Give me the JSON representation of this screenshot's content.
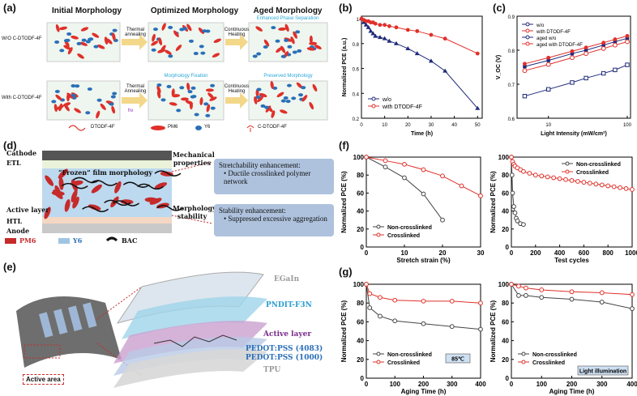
{
  "panels": {
    "a": {
      "label": "(a)",
      "headers": [
        "Initial Morphology",
        "Optimized Morphology",
        "Aged Morphology"
      ],
      "row1_label": "W/O C-DTODF-4F",
      "row2_label": "With C-DTODF-4F",
      "arrow1_row1": "Thermal annealing",
      "arrow2_row1": "Continuous Heating",
      "arrow1_row2": "Thermal Annealing",
      "arrow1_row2_sub": "hv",
      "arrow2_row2": "Continuous Heating",
      "note_enhanced": "Enhanced Phase Separation",
      "note_fixation": "Morphology Fixation",
      "note_preserved": "Preserved Morphology",
      "legend_dtodf": "DTODF-4F",
      "legend_pm6": "PM6",
      "legend_y6": "Y6",
      "legend_cdtodf": "C-DTODF-4F"
    },
    "b": {
      "label": "(b)"
    },
    "c": {
      "label": "(c)"
    },
    "d": {
      "label": "(d)",
      "cathode": "Cathode",
      "etl": "ETL",
      "frozen": "“Frozen” film morphology",
      "active": "Active layer",
      "htl": "HTL",
      "anode": "Anode",
      "mech": "Mechanical properties",
      "morph": "Morphology stability",
      "box1_title": "Stretchability enhancement:",
      "box1_item": "Ductile crosslinked polymer network",
      "box2_title": "Stability enhancement:",
      "box2_item": "Suppressed excessive aggregation",
      "legend_pm6": "PM6",
      "legend_y6": "Y6",
      "legend_bac": "BAC"
    },
    "e": {
      "label": "(e)",
      "egain": "EGaIn",
      "pndit": "PNDIT-F3N",
      "active_layer": "Active layer",
      "pedot1": "PEDOT:PSS (4083)",
      "pedot2": "PEDOT:PSS (1000)",
      "tpu": "TPU",
      "active_area": "Active area"
    },
    "f": {
      "label": "(f)"
    },
    "g": {
      "label": "(g)"
    }
  },
  "colors": {
    "red": "#e0302a",
    "navy": "#1f2a7a",
    "gray": "#444444",
    "blue_box": "#aec2dd"
  },
  "chart_data": [
    {
      "id": "b",
      "type": "line",
      "xlabel": "Time (h)",
      "ylabel": "Normalized PCE (a.u.)",
      "xlim": [
        0,
        52
      ],
      "ylim": [
        0.2,
        1.02
      ],
      "xticks": [
        0,
        10,
        20,
        30,
        40,
        50
      ],
      "yticks": [
        0.2,
        0.4,
        0.6,
        0.8,
        1.0
      ],
      "legend_position": "bottom-left",
      "series": [
        {
          "name": "w/o",
          "color": "#1f2a7a",
          "marker": "triangle",
          "x": [
            0,
            1,
            2,
            3,
            4,
            5,
            6,
            8,
            10,
            12,
            15,
            20,
            24,
            30,
            36,
            50
          ],
          "y": [
            1.0,
            0.97,
            0.95,
            0.93,
            0.9,
            0.88,
            0.86,
            0.85,
            0.84,
            0.82,
            0.8,
            0.76,
            0.72,
            0.66,
            0.58,
            0.28
          ]
        },
        {
          "name": "with DTODF-4F",
          "color": "#e0302a",
          "marker": "circle",
          "x": [
            0,
            1,
            2,
            3,
            4,
            5,
            6,
            8,
            10,
            12,
            15,
            20,
            24,
            30,
            36,
            50
          ],
          "y": [
            1.0,
            0.99,
            0.98,
            0.98,
            0.97,
            0.97,
            0.96,
            0.95,
            0.95,
            0.94,
            0.93,
            0.91,
            0.9,
            0.87,
            0.84,
            0.72
          ]
        }
      ]
    },
    {
      "id": "c",
      "type": "scatter",
      "xlabel": "Light Intensity (mW/cm²)",
      "ylabel": "V_OC (V)",
      "xscale": "log",
      "xlim": [
        4,
        110
      ],
      "ylim": [
        0.6,
        0.9
      ],
      "xticks": [
        10,
        100
      ],
      "yticks": [
        0.6,
        0.7,
        0.8,
        0.9
      ],
      "legend_position": "top-left",
      "series": [
        {
          "name": "w/o",
          "color": "#1f2a7a",
          "marker": "square-filled",
          "x": [
            5,
            10,
            20,
            30,
            50,
            70,
            100
          ],
          "y": [
            0.752,
            0.77,
            0.79,
            0.8,
            0.815,
            0.825,
            0.835
          ]
        },
        {
          "name": "with DTODF-4F",
          "color": "#e0302a",
          "marker": "circle-filled",
          "x": [
            5,
            10,
            20,
            30,
            50,
            70,
            100
          ],
          "y": [
            0.76,
            0.778,
            0.797,
            0.808,
            0.822,
            0.832,
            0.842
          ]
        },
        {
          "name": "aged w/o",
          "color": "#1f2a7a",
          "marker": "square-open",
          "x": [
            5,
            10,
            20,
            30,
            50,
            70,
            100
          ],
          "y": [
            0.665,
            0.685,
            0.705,
            0.718,
            0.732,
            0.742,
            0.757
          ]
        },
        {
          "name": "aged with DTODF-4F",
          "color": "#e0302a",
          "marker": "circle-open",
          "x": [
            5,
            10,
            20,
            30,
            50,
            70,
            100
          ],
          "y": [
            0.74,
            0.758,
            0.778,
            0.79,
            0.805,
            0.815,
            0.825
          ]
        }
      ]
    },
    {
      "id": "f1",
      "type": "line",
      "xlabel": "Stretch strain (%)",
      "ylabel": "Normalized PCE (%)",
      "xlim": [
        0,
        30
      ],
      "ylim": [
        0,
        100
      ],
      "xticks": [
        0,
        10,
        20,
        30
      ],
      "yticks": [
        0,
        20,
        40,
        60,
        80,
        100
      ],
      "legend_position": "bottom-left",
      "series": [
        {
          "name": "Non-crosslinked",
          "color": "#444444",
          "x": [
            0,
            5,
            10,
            15,
            20
          ],
          "y": [
            100,
            89,
            77,
            59,
            30
          ]
        },
        {
          "name": "Crosslinked",
          "color": "#e0302a",
          "x": [
            0,
            5,
            10,
            15,
            20,
            25,
            30
          ],
          "y": [
            100,
            96,
            92,
            86,
            79,
            68,
            57
          ]
        }
      ]
    },
    {
      "id": "f2",
      "type": "line",
      "xlabel": "Test cycles",
      "ylabel": "Normalized PCE (%)",
      "xlim": [
        0,
        1000
      ],
      "ylim": [
        0,
        100
      ],
      "xticks": [
        0,
        200,
        400,
        600,
        800,
        1000
      ],
      "yticks": [
        0,
        20,
        40,
        60,
        80,
        100
      ],
      "legend_position": "top-right",
      "series": [
        {
          "name": "Non-crosslinked",
          "color": "#444444",
          "x": [
            0,
            5,
            10,
            20,
            30,
            40,
            50,
            75,
            100
          ],
          "y": [
            100,
            80,
            60,
            45,
            38,
            32,
            29,
            26,
            25
          ]
        },
        {
          "name": "Crosslinked",
          "color": "#e0302a",
          "x": [
            0,
            10,
            20,
            30,
            50,
            75,
            100,
            150,
            200,
            250,
            300,
            350,
            400,
            450,
            500,
            550,
            600,
            650,
            700,
            750,
            800,
            850,
            900,
            950,
            1000
          ],
          "y": [
            100,
            95,
            92,
            90,
            88,
            86,
            84,
            82,
            80,
            79,
            78,
            77,
            76,
            75,
            74,
            73,
            72,
            71,
            70,
            69,
            68,
            67,
            66,
            65,
            64
          ]
        }
      ]
    },
    {
      "id": "g1",
      "type": "line",
      "xlabel": "Aging Time (h)",
      "ylabel": "Normalized PCE (%)",
      "xlim": [
        0,
        400
      ],
      "ylim": [
        0,
        100
      ],
      "xticks": [
        0,
        100,
        200,
        300,
        400
      ],
      "yticks": [
        0,
        20,
        40,
        60,
        80,
        100
      ],
      "legend_position": "bottom-left",
      "annotation": "85℃",
      "series": [
        {
          "name": "Non-crosslinked",
          "color": "#444444",
          "x": [
            0,
            12,
            48,
            100,
            200,
            300,
            400
          ],
          "y": [
            100,
            75,
            66,
            61,
            58,
            55,
            52
          ]
        },
        {
          "name": "Crosslinked",
          "color": "#e0302a",
          "x": [
            0,
            12,
            48,
            100,
            200,
            300,
            400
          ],
          "y": [
            100,
            90,
            86,
            83,
            82,
            82,
            80
          ]
        }
      ]
    },
    {
      "id": "g2",
      "type": "line",
      "xlabel": "Aging Time (h)",
      "ylabel": "Normalized PCE (%)",
      "xlim": [
        0,
        400
      ],
      "ylim": [
        0,
        100
      ],
      "xticks": [
        0,
        100,
        200,
        300,
        400
      ],
      "yticks": [
        0,
        20,
        40,
        60,
        80,
        100
      ],
      "legend_position": "bottom-left",
      "annotation": "Light illumination",
      "series": [
        {
          "name": "Non-crosslinked",
          "color": "#444444",
          "x": [
            0,
            24,
            48,
            100,
            200,
            300,
            400
          ],
          "y": [
            100,
            88,
            88,
            86,
            84,
            81,
            74
          ]
        },
        {
          "name": "Crosslinked",
          "color": "#e0302a",
          "x": [
            0,
            24,
            48,
            100,
            200,
            300,
            400
          ],
          "y": [
            100,
            98,
            96,
            94,
            92,
            91,
            89
          ]
        }
      ]
    }
  ]
}
